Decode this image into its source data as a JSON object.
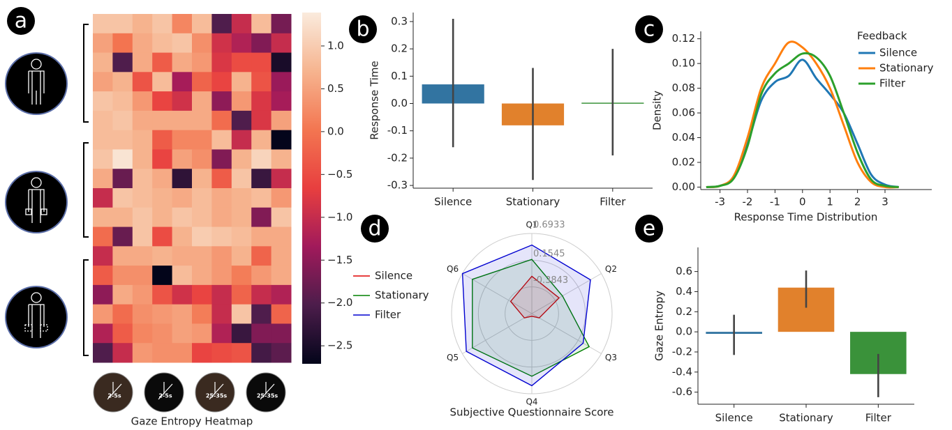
{
  "chart_data": [
    {
      "type": "heatmap",
      "panel_label": "a",
      "title": "Gaze Entropy Heatmap",
      "z": [
        [
          0.9,
          0.9,
          0.7,
          0.9,
          0.2,
          0.8,
          -2.0,
          -1.0,
          0.8,
          -1.7
        ],
        [
          0.5,
          0.0,
          0.6,
          0.8,
          0.9,
          0.3,
          -0.9,
          -1.2,
          -1.6,
          -1.0
        ],
        [
          0.7,
          -2.0,
          0.6,
          -0.3,
          0.6,
          0.4,
          -0.8,
          -0.5,
          -0.5,
          -2.5
        ],
        [
          0.5,
          0.7,
          -0.4,
          0.8,
          -1.3,
          -0.2,
          -0.6,
          0.7,
          -0.4,
          -1.4
        ],
        [
          0.9,
          0.8,
          0.4,
          -0.6,
          -0.9,
          0.6,
          -1.5,
          0.4,
          -0.8,
          -1.3
        ],
        [
          0.8,
          0.9,
          0.6,
          0.6,
          0.6,
          0.6,
          -0.1,
          -2.0,
          -0.8,
          0.5
        ],
        [
          0.8,
          0.8,
          0.7,
          -0.3,
          0.2,
          0.2,
          0.8,
          -1.0,
          0.7,
          -2.7
        ],
        [
          0.9,
          1.3,
          0.7,
          -0.6,
          0.5,
          0.3,
          -1.6,
          0.7,
          1.1,
          0.7
        ],
        [
          0.6,
          -1.8,
          0.8,
          0.6,
          -2.3,
          0.7,
          -0.3,
          0.9,
          -2.2,
          -1.0
        ],
        [
          -1.0,
          0.9,
          0.8,
          0.7,
          0.6,
          0.8,
          0.6,
          0.7,
          0.8,
          0.4
        ],
        [
          0.7,
          0.7,
          0.9,
          0.7,
          0.9,
          0.8,
          0.6,
          0.7,
          -1.6,
          0.9
        ],
        [
          -0.1,
          -1.8,
          0.9,
          -0.5,
          0.7,
          1.0,
          0.9,
          0.8,
          0.6,
          0.6
        ],
        [
          -1.0,
          0.6,
          0.6,
          0.7,
          0.6,
          0.6,
          0.4,
          0.7,
          -0.2,
          0.6
        ],
        [
          -0.3,
          0.3,
          0.3,
          -2.8,
          0.8,
          0.6,
          0.4,
          0.1,
          0.4,
          0.6
        ],
        [
          -1.5,
          0.6,
          0.4,
          -0.4,
          -0.9,
          -0.6,
          -1.0,
          -0.2,
          -1.0,
          -1.2
        ],
        [
          0.4,
          -0.1,
          0.3,
          0.4,
          0.5,
          0.1,
          -1.0,
          0.9,
          -2.0,
          -0.2
        ],
        [
          -1.2,
          -0.3,
          0.2,
          0.3,
          0.5,
          0.4,
          -1.2,
          -2.2,
          -1.6,
          -1.6
        ],
        [
          -2.0,
          -1.0,
          0.4,
          0.3,
          0.3,
          -0.6,
          -0.5,
          -0.4,
          -2.1,
          -1.9
        ]
      ],
      "clim": [
        -2.71,
        1.39
      ],
      "colormap": [
        "#03051a",
        "#4c1d4b",
        "#a11a5b",
        "#e83f3f",
        "#f37651",
        "#f6b48f",
        "#faebdd"
      ],
      "cticks": [
        {
          "value": 1,
          "label": "1.0"
        },
        {
          "value": 0.5,
          "label": "0.5"
        },
        {
          "value": 0,
          "label": "0.0"
        },
        {
          "value": -0.5,
          "label": "−0.5"
        },
        {
          "value": -1,
          "label": "−1.0"
        },
        {
          "value": -1.5,
          "label": "−1.5"
        },
        {
          "value": -2,
          "label": "−2.0"
        },
        {
          "value": -2.5,
          "label": "−2.5"
        }
      ],
      "thumbnail_labels": [
        "2-5s",
        "2-5s",
        "25-35s",
        "25-35s"
      ]
    },
    {
      "type": "bar",
      "panel_label": "b",
      "ylabel": "Response Time",
      "categories": [
        "Silence",
        "Stationary",
        "Filter"
      ],
      "values": [
        0.07,
        -0.08,
        0.003
      ],
      "errors": [
        [
          -0.16,
          0.31
        ],
        [
          -0.28,
          0.13
        ],
        [
          -0.19,
          0.2
        ]
      ],
      "colors": [
        "#3274a1",
        "#e1812c",
        "#3a923a"
      ],
      "ylim": [
        -0.31,
        0.333
      ],
      "yticks": [
        0.3,
        0.2,
        0.1,
        {
          "value": 0,
          "label": "0.0"
        },
        -0.1,
        -0.2,
        -0.3
      ]
    },
    {
      "type": "line",
      "panel_label": "c",
      "xlabel": "Response Time Distribution",
      "ylabel": "Density",
      "legend_title": "Feedback",
      "x": [
        -3.5,
        -3,
        -2.5,
        -2,
        -1.5,
        -1,
        -0.5,
        0,
        0.5,
        1,
        1.5,
        2,
        2.5,
        3,
        3.5
      ],
      "series": [
        {
          "name": "Silence",
          "color": "#1f77b4",
          "values": [
            0,
            0.001,
            0.008,
            0.035,
            0.07,
            0.085,
            0.09,
            0.103,
            0.088,
            0.075,
            0.06,
            0.035,
            0.01,
            0.002,
            0
          ]
        },
        {
          "name": "Stationary",
          "color": "#ff7f0e",
          "values": [
            0,
            0.001,
            0.009,
            0.04,
            0.08,
            0.1,
            0.117,
            0.113,
            0.1,
            0.08,
            0.05,
            0.02,
            0.004,
            0,
            0
          ]
        },
        {
          "name": "Filter",
          "color": "#2ca02c",
          "values": [
            0,
            0.001,
            0.007,
            0.033,
            0.075,
            0.092,
            0.1,
            0.108,
            0.105,
            0.09,
            0.06,
            0.028,
            0.006,
            0.001,
            0
          ]
        }
      ],
      "xlim": [
        -3.7,
        4.7
      ],
      "xticks": [
        -3,
        -2,
        -1,
        0,
        1,
        2,
        3
      ],
      "ylim": [
        -0.002,
        0.126
      ],
      "yticks": [
        {
          "value": 0,
          "label": "0.00"
        },
        0.02,
        0.04,
        0.06,
        0.08,
        {
          "value": 0.1,
          "label": "0.10"
        },
        0.12
      ]
    },
    {
      "type": "radar",
      "panel_label": "d",
      "title": "Subjective Questionnaire Score",
      "categories": [
        "Q1",
        "Q2",
        "Q3",
        "Q4",
        "Q5",
        "Q6"
      ],
      "series": [
        {
          "name": "Silence",
          "color": "#e00000",
          "values": [
            -0.17,
            -0.29,
            -0.75,
            -0.87,
            -0.75,
            -0.43
          ]
        },
        {
          "name": "Stationary",
          "color": "#008000",
          "values": [
            0.17,
            -0.21,
            0.41,
            0.34,
            0.46,
            0.46
          ]
        },
        {
          "name": "Filter",
          "color": "#0000d0",
          "values": [
            0.46,
            0.44,
            0.27,
            0.53,
            0.6,
            0.69
          ]
        }
      ],
      "rlim": [
        -0.9231,
        0.6933
      ],
      "rticks": [
        -0.3843,
        0.1545,
        0.6933
      ]
    },
    {
      "type": "bar",
      "panel_label": "e",
      "ylabel": "Gaze Entropy",
      "categories": [
        "Silence",
        "Stationary",
        "Filter"
      ],
      "values": [
        -0.02,
        0.44,
        -0.42
      ],
      "errors": [
        [
          -0.23,
          0.17
        ],
        [
          0.24,
          0.61
        ],
        [
          -0.65,
          -0.22
        ]
      ],
      "colors": [
        "#3274a1",
        "#e1812c",
        "#3a923a"
      ],
      "ylim": [
        -0.72,
        0.84
      ],
      "yticks": [
        0.6,
        0.4,
        0.2,
        {
          "value": 0,
          "label": "0.0"
        },
        -0.2,
        -0.4,
        -0.6
      ]
    }
  ]
}
